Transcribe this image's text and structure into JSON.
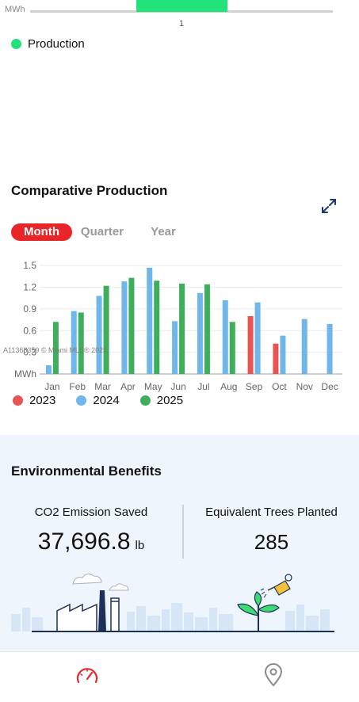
{
  "top_chart": {
    "unit": "MWh",
    "tick": "1",
    "bar_color": "#22e37a",
    "legend": {
      "label": "Production",
      "color": "#22e37a"
    }
  },
  "comparative": {
    "title": "Comparative Production",
    "tabs": {
      "month": "Month",
      "quarter": "Quarter",
      "year": "Year"
    },
    "active_tab": "Month",
    "accent": "#e8262a",
    "watermark": "A11368359 © Miami MLS® 2025"
  },
  "chart_data": {
    "type": "bar",
    "categories": [
      "Jan",
      "Feb",
      "Mar",
      "Apr",
      "May",
      "Jun",
      "Jul",
      "Aug",
      "Sep",
      "Oct",
      "Nov",
      "Dec"
    ],
    "series": [
      {
        "name": "2023",
        "color": "#e85353",
        "values": [
          null,
          null,
          null,
          null,
          null,
          null,
          null,
          null,
          0.8,
          0.42,
          null,
          null
        ]
      },
      {
        "name": "2024",
        "color": "#6fb6ea",
        "values": [
          0.12,
          0.87,
          1.08,
          1.28,
          1.47,
          0.73,
          1.12,
          1.02,
          0.99,
          0.53,
          0.76,
          0.69
        ]
      },
      {
        "name": "2025",
        "color": "#3fae5c",
        "values": [
          0.72,
          0.85,
          1.22,
          1.33,
          1.29,
          1.25,
          1.24,
          0.72,
          null,
          null,
          null,
          null
        ]
      }
    ],
    "yticks": [
      "1.5",
      "1.2",
      "0.9",
      "0.6",
      "0.3"
    ],
    "ylabel": "MWh",
    "ylim": [
      0,
      1.6
    ],
    "grid": true,
    "legend_position": "bottom-left"
  },
  "env": {
    "title": "Environmental Benefits",
    "co2": {
      "label": "CO2 Emission Saved",
      "value": "37,696.8",
      "unit": "lb"
    },
    "trees": {
      "label": "Equivalent Trees Planted",
      "value": "285"
    }
  },
  "nav": {
    "items": [
      {
        "icon": "dashboard-gauge-icon",
        "color": "#e8262a"
      },
      {
        "icon": "location-pin-icon",
        "color": "#8a8a8a"
      }
    ]
  }
}
